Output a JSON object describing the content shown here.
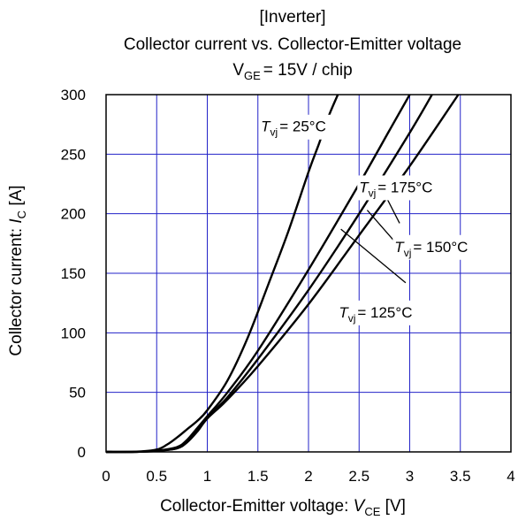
{
  "chart_data": {
    "type": "line",
    "title_line1": "[Inverter]",
    "title_line2": "Collector current vs. Collector-Emitter voltage",
    "title_line3": {
      "main": "V",
      "sub": "GE",
      "rest": "= 15V / chip"
    },
    "xlabel": {
      "prefix": "Collector-Emitter voltage: ",
      "italic": "V",
      "sub": "CE",
      "unit": " [V]"
    },
    "ylabel": {
      "prefix": "Collector current: ",
      "italic": "I",
      "sub": "C",
      "unit": " [A]"
    },
    "xlim": [
      0,
      4
    ],
    "ylim": [
      0,
      300
    ],
    "x_ticks": [
      0,
      0.5,
      1,
      1.5,
      2,
      2.5,
      3,
      3.5,
      4
    ],
    "x_tick_labels": [
      "0",
      "0.5",
      "1",
      "1.5",
      "2",
      "2.5",
      "3",
      "3.5",
      "4"
    ],
    "y_ticks": [
      0,
      50,
      100,
      150,
      200,
      250,
      300
    ],
    "y_tick_labels": [
      "0",
      "50",
      "100",
      "150",
      "200",
      "250",
      "300"
    ],
    "grid": true,
    "grid_color": "#2323c8",
    "line_color": "#000000",
    "series": [
      {
        "name": "T_vj = 25°C",
        "label_main": "T",
        "label_sub": "vj",
        "label_rest": "= 25°C",
        "x": [
          0,
          0.3,
          0.5,
          0.6,
          0.7,
          0.8,
          0.9,
          1.0,
          1.2,
          1.4,
          1.6,
          1.8,
          2.0,
          2.1,
          2.2,
          2.29
        ],
        "y": [
          0,
          0.2,
          2,
          6,
          12,
          19,
          26,
          35,
          60,
          96,
          140,
          185,
          235,
          258,
          282,
          300
        ]
      },
      {
        "name": "T_vj = 125°C",
        "label_main": "T",
        "label_sub": "vj",
        "label_rest": "= 125°C",
        "x": [
          0,
          0.3,
          0.5,
          0.7,
          0.8,
          0.9,
          1.0,
          1.2,
          1.5,
          2.0,
          2.5,
          2.8,
          3.0
        ],
        "y": [
          0,
          0.1,
          1,
          4,
          10,
          20,
          30,
          50,
          85,
          153,
          225,
          270,
          300
        ]
      },
      {
        "name": "T_vj = 150°C",
        "label_main": "T",
        "label_sub": "vj",
        "label_rest": "= 150°C",
        "x": [
          0,
          0.3,
          0.5,
          0.7,
          0.8,
          0.9,
          1.0,
          1.2,
          1.5,
          2.0,
          2.5,
          3.0,
          3.22
        ],
        "y": [
          0,
          0.1,
          1,
          3,
          9,
          19,
          29,
          46,
          78,
          136,
          200,
          268,
          300
        ]
      },
      {
        "name": "T_vj = 175°C",
        "label_main": "T",
        "label_sub": "vj",
        "label_rest": "= 175°C",
        "x": [
          0,
          0.3,
          0.5,
          0.7,
          0.8,
          0.9,
          1.0,
          1.2,
          1.5,
          2.0,
          2.5,
          3.0,
          3.48
        ],
        "y": [
          0,
          0.1,
          0.8,
          3,
          8,
          17,
          28,
          44,
          72,
          124,
          182,
          240,
          300
        ]
      }
    ],
    "annotations": [
      {
        "series": 0,
        "text_x": 2.08,
        "text_y": 269,
        "point_x": 0,
        "point_y": 0,
        "leader": false
      },
      {
        "series": 3,
        "text_x": 3.05,
        "text_y": 218,
        "point_x": 2.72,
        "point_y": 222,
        "leader": true,
        "end_x": 2.9,
        "end_y": 192
      },
      {
        "series": 2,
        "text_x": 3.4,
        "text_y": 168,
        "point_x": 2.58,
        "point_y": 203,
        "leader": true,
        "end_x": 2.92,
        "end_y": 170
      },
      {
        "series": 1,
        "text_x": 2.85,
        "text_y": 113,
        "point_x": 2.32,
        "point_y": 187,
        "leader": true,
        "end_x": 2.96,
        "end_y": 142
      }
    ]
  }
}
